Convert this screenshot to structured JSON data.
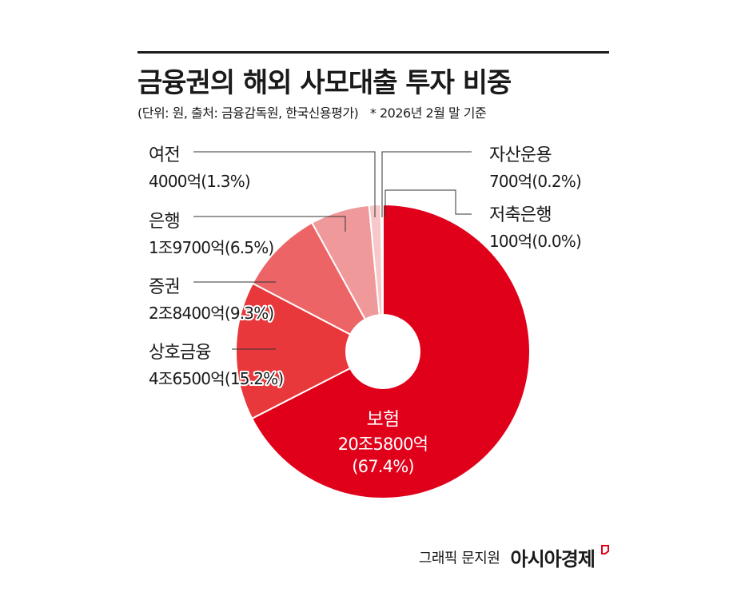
{
  "header": {
    "title": "금융권의 해외 사모대출 투자 비중",
    "source": "(단위: 원, 출처: 금융감독원, 한국신용평가)",
    "note": "* 2026년 2월 말 기준"
  },
  "footer": {
    "credit": "그래픽 문지원",
    "brand": "아시아경제"
  },
  "colors": {
    "insurance": "#e0001a",
    "savings_bank": "#e8383c",
    "securities": "#ec6466",
    "bank": "#f0999b",
    "card_credit": "#f6c8c9",
    "asset_mgmt": "#fbe4e4",
    "savings_coop": "#fdf2f2",
    "text": "#1a1a1a"
  },
  "chart_data": {
    "type": "pie",
    "title": "금융권의 해외 사모대출 투자 비중",
    "unit": "원",
    "donut": true,
    "slices": [
      {
        "name": "보험",
        "amount": "20조5800억",
        "percent": 67.4,
        "percent_label": "(67.4%)",
        "color": "#e0001a"
      },
      {
        "name": "상호금융",
        "amount": "4조6500억",
        "percent": 15.2,
        "percent_label": "(15.2%)",
        "color": "#e8383c"
      },
      {
        "name": "증권",
        "amount": "2조8400억",
        "percent": 9.3,
        "percent_label": "(9.3%)",
        "color": "#ec6466"
      },
      {
        "name": "은행",
        "amount": "1조9700억",
        "percent": 6.5,
        "percent_label": "(6.5%)",
        "color": "#f0999b"
      },
      {
        "name": "여전",
        "amount": "4000억",
        "percent": 1.3,
        "percent_label": "(1.3%)",
        "color": "#f6c8c9"
      },
      {
        "name": "자산운용",
        "amount": "700억",
        "percent": 0.2,
        "percent_label": "(0.2%)",
        "color": "#fbe4e4"
      },
      {
        "name": "저축은행",
        "amount": "100억",
        "percent": 0.0,
        "percent_label": "(0.0%)",
        "color": "#fdf2f2"
      }
    ]
  }
}
